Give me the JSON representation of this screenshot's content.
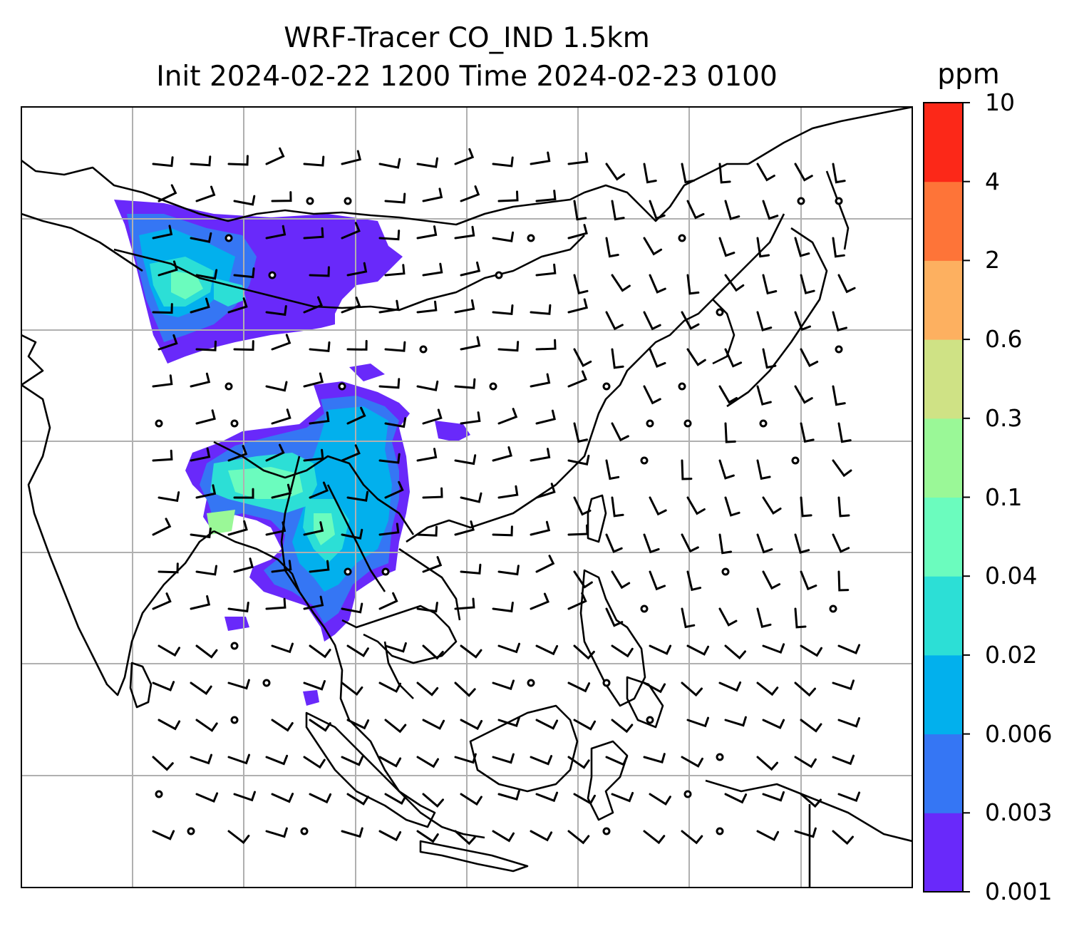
{
  "title": {
    "line1": "WRF-Tracer CO_IND 1.5km",
    "line2": "Init 2024-02-22 1200 Time 2024-02-23 0100"
  },
  "colorbar": {
    "unit": "ppm",
    "levels": [
      "0.001",
      "0.003",
      "0.006",
      "0.02",
      "0.04",
      "0.1",
      "0.3",
      "0.6",
      "2",
      "4",
      "10"
    ],
    "colors": [
      "#6929fa",
      "#3576f4",
      "#02b0ed",
      "#2cdfd6",
      "#6bfcbe",
      "#9af897",
      "#cfe285",
      "#fdb060",
      "#fe7438",
      "#fc2818"
    ]
  },
  "map": {
    "ocean_color": "#ffffff",
    "coastline_color": "#000000",
    "gridline_color": "#b0b0b0",
    "features": [
      "coastlines",
      "country-borders",
      "wind-barbs",
      "calm-circles",
      "tracer-filled-contours"
    ]
  }
}
